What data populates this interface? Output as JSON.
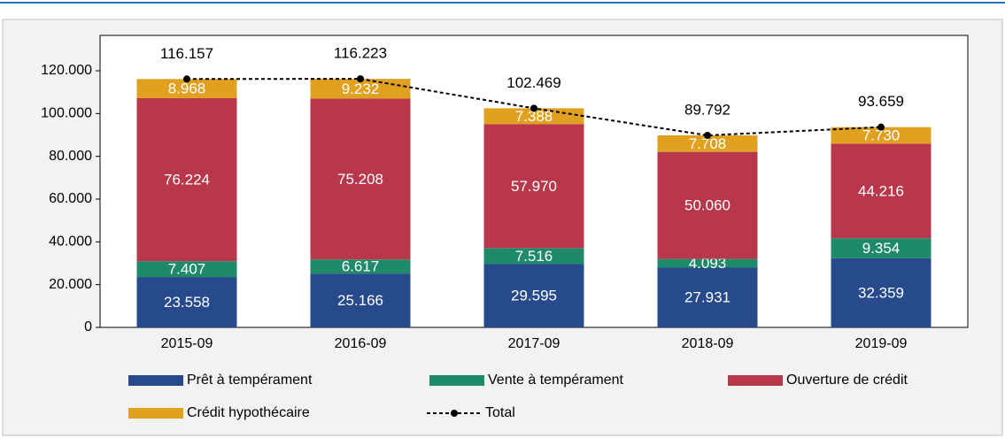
{
  "chart_data": {
    "type": "bar",
    "stacked": true,
    "categories": [
      "2015-09",
      "2016-09",
      "2017-09",
      "2018-09",
      "2019-09"
    ],
    "series": [
      {
        "name": "Prêt à tempérament",
        "color": "#264a8c",
        "values": [
          23558,
          25166,
          29595,
          27931,
          32359
        ],
        "value_labels": [
          "23.558",
          "25.166",
          "29.595",
          "27.931",
          "32.359"
        ]
      },
      {
        "name": "Vente à tempérament",
        "color": "#1f8a6a",
        "values": [
          7407,
          6617,
          7516,
          4093,
          9354
        ],
        "value_labels": [
          "7.407",
          "6.617",
          "7.516",
          "4.093",
          "9.354"
        ]
      },
      {
        "name": "Ouverture de crédit",
        "color": "#b8374b",
        "values": [
          76224,
          75208,
          57970,
          50060,
          44216
        ],
        "value_labels": [
          "76.224",
          "75.208",
          "57.970",
          "50.060",
          "44.216"
        ]
      },
      {
        "name": "Crédit hypothécaire",
        "color": "#e0a020",
        "values": [
          8968,
          9232,
          7388,
          7708,
          7730
        ],
        "value_labels": [
          "8.968",
          "9.232",
          "7.388",
          "7.708",
          "7.730"
        ]
      },
      {
        "name": "Total",
        "type": "line",
        "color": "#000000",
        "values": [
          116157,
          116223,
          102469,
          89792,
          93659
        ],
        "value_labels": [
          "116.157",
          "116.223",
          "102.469",
          "89.792",
          "93.659"
        ]
      }
    ],
    "ylim": [
      0,
      120000
    ],
    "yticks": [
      0,
      {
        "value": 20000,
        "label": "20.000"
      },
      {
        "value": 40000,
        "label": "40.000"
      },
      {
        "value": 60000,
        "label": "60.000"
      },
      {
        "value": 80000,
        "label": "80.000"
      },
      {
        "value": 100000,
        "label": "100.000"
      },
      {
        "value": 120000,
        "label": "120.000"
      }
    ],
    "grid": false
  }
}
